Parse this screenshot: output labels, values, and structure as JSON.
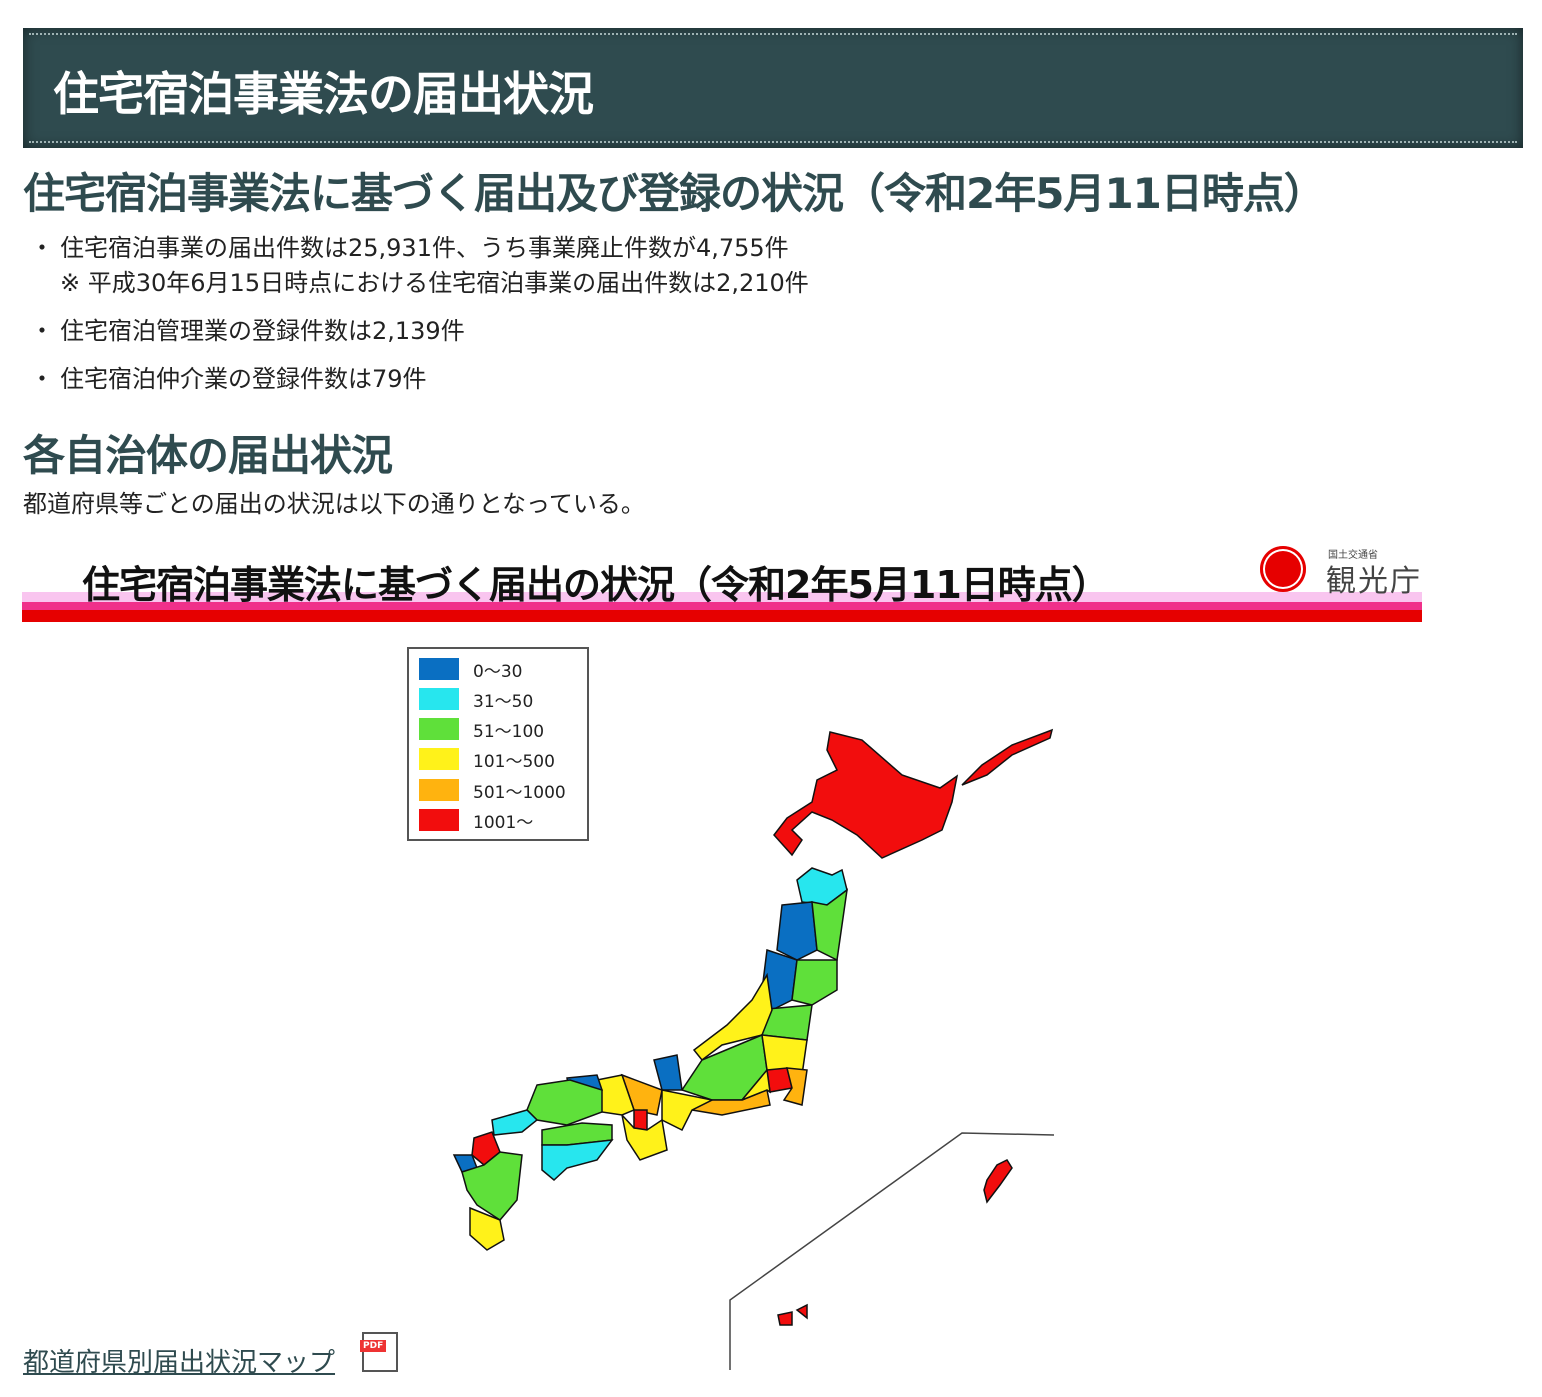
{
  "header": {
    "title": "住宅宿泊事業法の届出状況"
  },
  "section1": {
    "title": "住宅宿泊事業法に基づく届出及び登録の状況（令和2年5月11日時点）",
    "bullets": [
      {
        "mark": "・",
        "text": "住宅宿泊事業の届出件数は25,931件、うち事業廃止件数が4,755件"
      },
      {
        "mark": "・",
        "text": "住宅宿泊管理業の登録件数は2,139件"
      },
      {
        "mark": "・",
        "text": "住宅宿泊仲介業の登録件数は79件"
      }
    ],
    "note": "※ 平成30年6月15日時点における住宅宿泊事業の届出件数は2,210件"
  },
  "section2": {
    "title": "各自治体の届出状況",
    "text": "都道府県等ごとの届出の状況は以下の通りとなっている。"
  },
  "map": {
    "title": "住宅宿泊事業法に基づく届出の状況（令和2年5月11日時点）",
    "logo": {
      "ministry": "国土交通省",
      "agency": "観光庁"
    },
    "legend": [
      {
        "label": "0～30",
        "color": "#0a6fc2"
      },
      {
        "label": "31～50",
        "color": "#27e6ee"
      },
      {
        "label": "51～100",
        "color": "#5fe03a"
      },
      {
        "label": "101～500",
        "color": "#fff21a"
      },
      {
        "label": "501～1000",
        "color": "#ffb30f"
      },
      {
        "label": "1001～",
        "color": "#f20d0d"
      }
    ]
  },
  "link": {
    "label": "都道府県別届出状況マップ",
    "icon": "pdf-icon"
  }
}
